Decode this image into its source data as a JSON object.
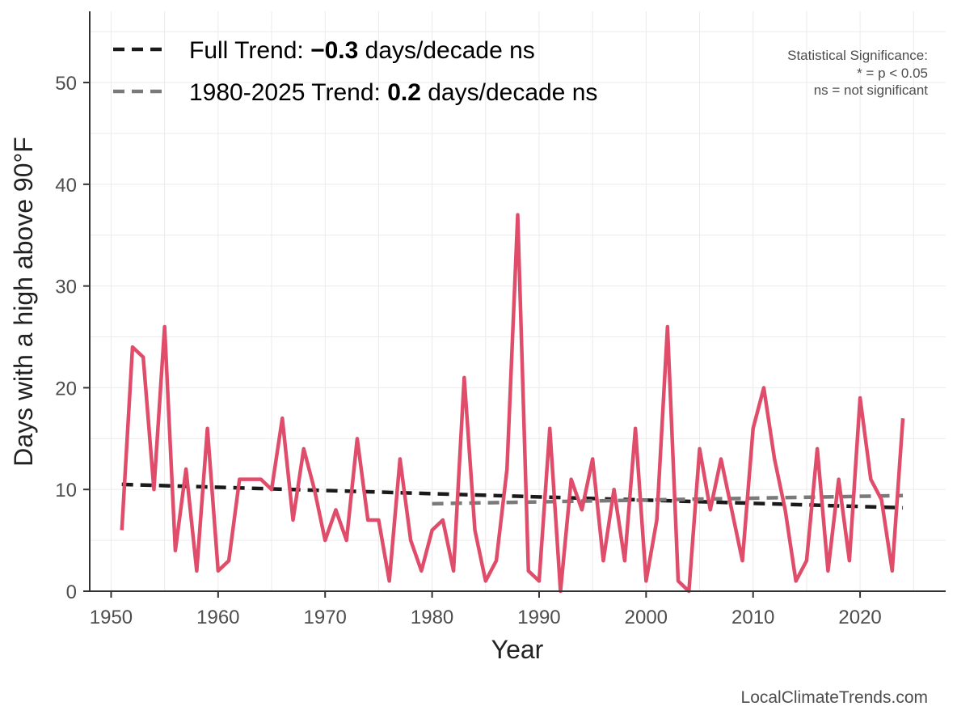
{
  "chart_data": {
    "type": "line",
    "xlabel": "Year",
    "ylabel": "Days with a high above 90°F",
    "xlim": [
      1948,
      2028
    ],
    "ylim": [
      0,
      57
    ],
    "x_ticks": [
      1950,
      1960,
      1970,
      1980,
      1990,
      2000,
      2010,
      2020
    ],
    "y_ticks": [
      0,
      10,
      20,
      30,
      40,
      50
    ],
    "grid": true,
    "series": [
      {
        "name": "Days with a high above 90°F",
        "color": "#e04d6b",
        "x": [
          1951,
          1952,
          1953,
          1954,
          1955,
          1956,
          1957,
          1958,
          1959,
          1960,
          1961,
          1962,
          1963,
          1964,
          1965,
          1966,
          1967,
          1968,
          1969,
          1970,
          1971,
          1972,
          1973,
          1974,
          1975,
          1976,
          1977,
          1978,
          1979,
          1980,
          1981,
          1982,
          1983,
          1984,
          1985,
          1986,
          1987,
          1988,
          1989,
          1990,
          1991,
          1992,
          1993,
          1994,
          1995,
          1996,
          1997,
          1998,
          1999,
          2000,
          2001,
          2002,
          2003,
          2004,
          2005,
          2006,
          2007,
          2008,
          2009,
          2010,
          2011,
          2012,
          2013,
          2014,
          2015,
          2016,
          2017,
          2018,
          2019,
          2020,
          2021,
          2022,
          2023,
          2024
        ],
        "values": [
          6,
          24,
          23,
          10,
          26,
          4,
          12,
          2,
          16,
          2,
          3,
          11,
          11,
          11,
          10,
          17,
          7,
          14,
          10,
          5,
          8,
          5,
          15,
          7,
          7,
          1,
          13,
          5,
          2,
          6,
          7,
          2,
          21,
          6,
          1,
          3,
          12,
          37,
          2,
          1,
          16,
          0,
          11,
          8,
          13,
          3,
          10,
          3,
          16,
          1,
          7,
          26,
          1,
          0,
          14,
          8,
          13,
          8,
          3,
          16,
          20,
          13,
          8,
          1,
          3,
          14,
          2,
          11,
          3,
          19,
          11,
          9,
          2,
          17
        ]
      }
    ],
    "trends": [
      {
        "name": "Full Trend",
        "color": "#1a1a1a",
        "x": [
          1951,
          2024
        ],
        "values": [
          10.5,
          8.2
        ]
      },
      {
        "name": "1980-2025 Trend",
        "color": "#7a7a7a",
        "x": [
          1980,
          2024
        ],
        "values": [
          8.6,
          9.4
        ]
      }
    ]
  },
  "legend": {
    "full": {
      "prefix": "Full Trend: ",
      "value": "−0.3",
      "suffix": " days/decade ns"
    },
    "recent": {
      "prefix": "1980-2025 Trend: ",
      "value": "0.2",
      "suffix": " days/decade ns"
    }
  },
  "significance": {
    "line1": "Statistical Significance:",
    "line2": "* = p < 0.05",
    "line3": "ns = not significant"
  },
  "source": "LocalClimateTrends.com"
}
